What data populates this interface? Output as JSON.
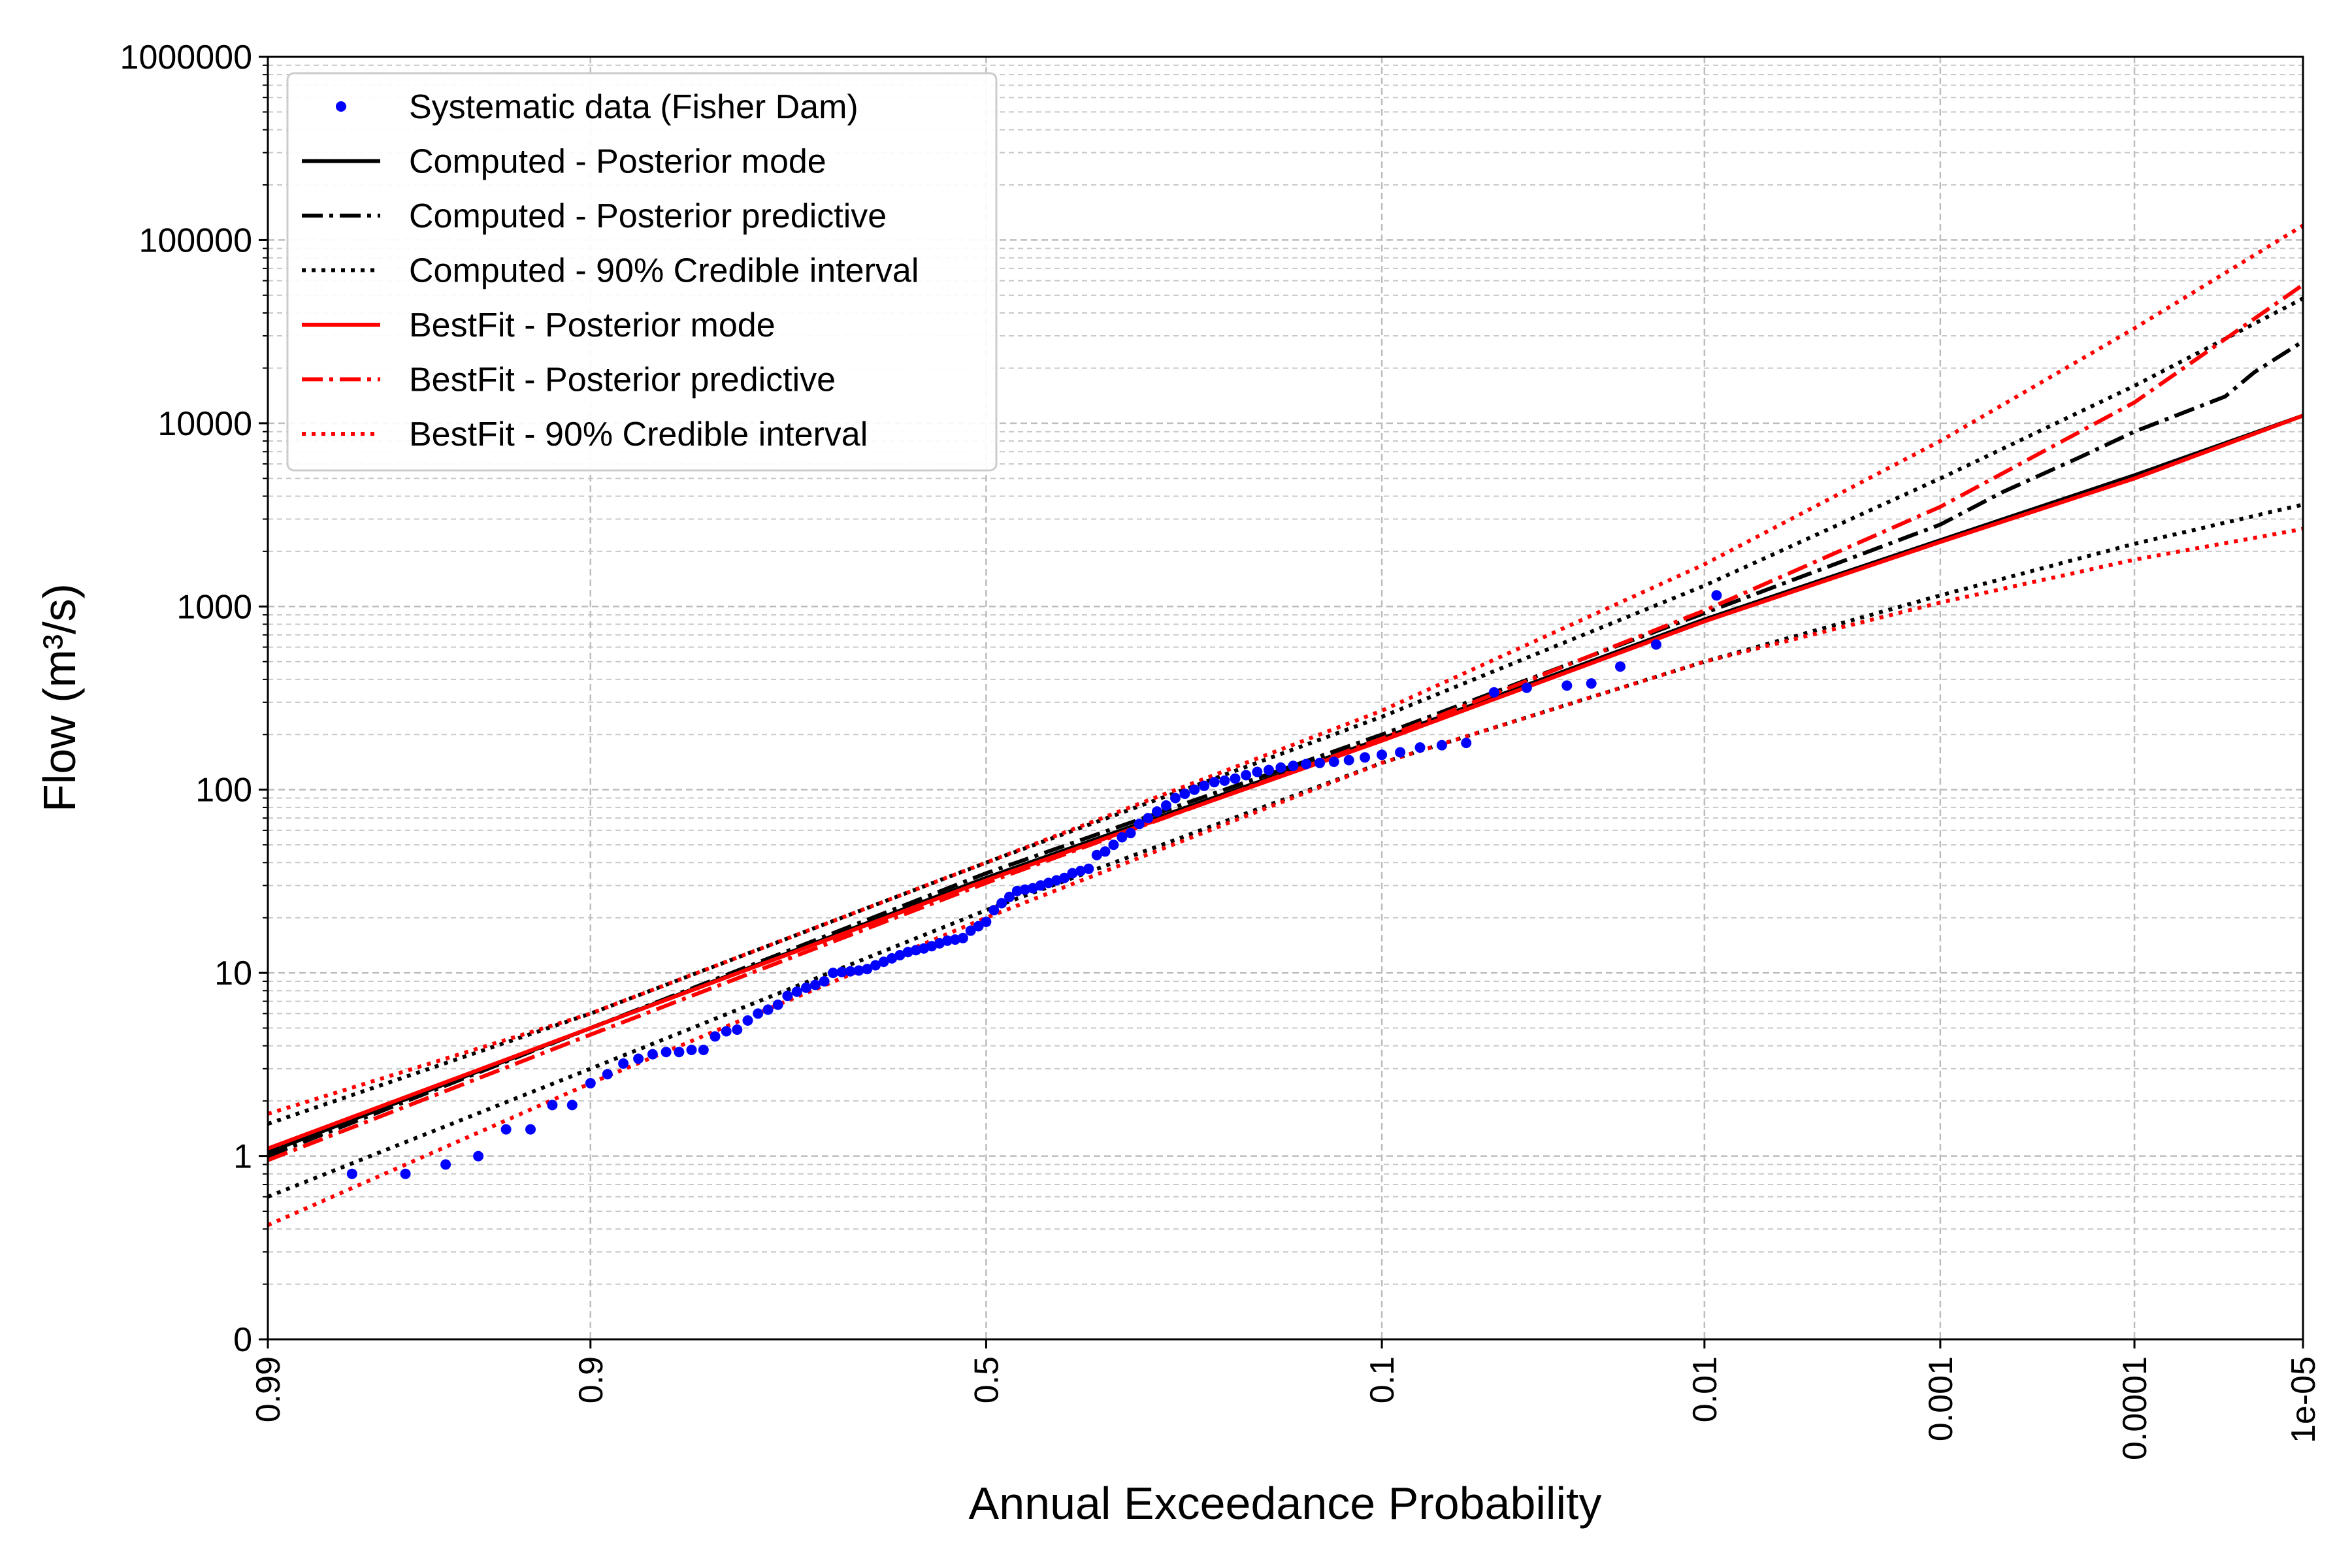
{
  "chart_data": {
    "type": "line",
    "title": "",
    "xlabel": "Annual Exceedance Probability",
    "ylabel": "Flow (m³/s)",
    "x_scale": "normal-probability",
    "y_scale": "log",
    "xlim": [
      0.99,
      1e-05
    ],
    "ylim": [
      0.1,
      1000000
    ],
    "grid": "on",
    "legend_position": "top-left",
    "x_ticks": [
      {
        "value": 0.99,
        "label": "0.99"
      },
      {
        "value": 0.9,
        "label": "0.9"
      },
      {
        "value": 0.5,
        "label": "0.5"
      },
      {
        "value": 0.1,
        "label": "0.1"
      },
      {
        "value": 0.01,
        "label": "0.01"
      },
      {
        "value": 0.001,
        "label": "0.001"
      },
      {
        "value": 0.0001,
        "label": "0.0001"
      },
      {
        "value": 1e-05,
        "label": "1e-05"
      }
    ],
    "y_ticks": [
      {
        "value": 0.1,
        "label": "0"
      },
      {
        "value": 1,
        "label": "1"
      },
      {
        "value": 10,
        "label": "10"
      },
      {
        "value": 100,
        "label": "100"
      },
      {
        "value": 1000,
        "label": "1000"
      },
      {
        "value": 10000,
        "label": "10000"
      },
      {
        "value": 100000,
        "label": "100000"
      },
      {
        "value": 1000000,
        "label": "1000000"
      }
    ],
    "series": [
      {
        "name": "Systematic data (Fisher Dam)",
        "kind": "scatter",
        "color": "#0000ff",
        "points": [
          [
            0.98,
            0.8
          ],
          [
            0.97,
            0.8
          ],
          [
            0.96,
            0.9
          ],
          [
            0.95,
            1.0
          ],
          [
            0.94,
            1.4
          ],
          [
            0.93,
            1.4
          ],
          [
            0.92,
            1.9
          ],
          [
            0.91,
            1.9
          ],
          [
            0.9,
            2.5
          ],
          [
            0.89,
            2.8
          ],
          [
            0.88,
            3.2
          ],
          [
            0.87,
            3.4
          ],
          [
            0.86,
            3.6
          ],
          [
            0.85,
            3.7
          ],
          [
            0.84,
            3.7
          ],
          [
            0.83,
            3.8
          ],
          [
            0.82,
            3.8
          ],
          [
            0.81,
            4.5
          ],
          [
            0.8,
            4.8
          ],
          [
            0.79,
            4.9
          ],
          [
            0.78,
            5.5
          ],
          [
            0.77,
            6.0
          ],
          [
            0.76,
            6.3
          ],
          [
            0.75,
            6.7
          ],
          [
            0.74,
            7.5
          ],
          [
            0.73,
            7.9
          ],
          [
            0.72,
            8.3
          ],
          [
            0.71,
            8.6
          ],
          [
            0.7,
            9.0
          ],
          [
            0.69,
            10.0
          ],
          [
            0.68,
            10.1
          ],
          [
            0.67,
            10.2
          ],
          [
            0.66,
            10.3
          ],
          [
            0.65,
            10.5
          ],
          [
            0.64,
            11.0
          ],
          [
            0.63,
            11.5
          ],
          [
            0.62,
            12.0
          ],
          [
            0.61,
            12.5
          ],
          [
            0.6,
            13.0
          ],
          [
            0.59,
            13.3
          ],
          [
            0.58,
            13.6
          ],
          [
            0.57,
            14.0
          ],
          [
            0.56,
            14.5
          ],
          [
            0.55,
            15.0
          ],
          [
            0.54,
            15.2
          ],
          [
            0.53,
            15.5
          ],
          [
            0.52,
            17.0
          ],
          [
            0.51,
            18.0
          ],
          [
            0.5,
            19.0
          ],
          [
            0.49,
            22.0
          ],
          [
            0.48,
            24.0
          ],
          [
            0.47,
            26.0
          ],
          [
            0.46,
            28.0
          ],
          [
            0.45,
            28.5
          ],
          [
            0.44,
            29.0
          ],
          [
            0.43,
            30.0
          ],
          [
            0.42,
            31.0
          ],
          [
            0.41,
            32.0
          ],
          [
            0.4,
            33.0
          ],
          [
            0.39,
            35.0
          ],
          [
            0.38,
            36.0
          ],
          [
            0.37,
            37.0
          ],
          [
            0.36,
            44.0
          ],
          [
            0.35,
            46.0
          ],
          [
            0.34,
            50.0
          ],
          [
            0.33,
            55.0
          ],
          [
            0.32,
            58.0
          ],
          [
            0.31,
            65.0
          ],
          [
            0.3,
            70.0
          ],
          [
            0.29,
            76.0
          ],
          [
            0.28,
            82.0
          ],
          [
            0.27,
            90.0
          ],
          [
            0.26,
            95.0
          ],
          [
            0.25,
            100.0
          ],
          [
            0.24,
            105.0
          ],
          [
            0.23,
            110.0
          ],
          [
            0.22,
            112.0
          ],
          [
            0.21,
            115.0
          ],
          [
            0.2,
            120.0
          ],
          [
            0.19,
            125.0
          ],
          [
            0.18,
            128.0
          ],
          [
            0.17,
            132.0
          ],
          [
            0.16,
            135.0
          ],
          [
            0.15,
            138.0
          ],
          [
            0.14,
            140.0
          ],
          [
            0.13,
            142.0
          ],
          [
            0.12,
            145.0
          ],
          [
            0.11,
            150.0
          ],
          [
            0.1,
            155.0
          ],
          [
            0.09,
            160.0
          ],
          [
            0.08,
            170.0
          ],
          [
            0.07,
            175.0
          ],
          [
            0.06,
            180.0
          ],
          [
            0.05,
            340.0
          ],
          [
            0.04,
            360.0
          ],
          [
            0.03,
            370.0
          ],
          [
            0.025,
            380.0
          ],
          [
            0.02,
            470.0
          ],
          [
            0.015,
            620.0
          ],
          [
            0.009,
            1150.0
          ]
        ]
      },
      {
        "name": "Computed - Posterior mode",
        "kind": "line",
        "color": "#000000",
        "dash": "solid",
        "points": [
          [
            0.99,
            1.05
          ],
          [
            0.9,
            5.0
          ],
          [
            0.5,
            33.0
          ],
          [
            0.1,
            190.0
          ],
          [
            0.01,
            850.0
          ],
          [
            0.001,
            2300.0
          ],
          [
            0.0001,
            5200.0
          ],
          [
            1e-05,
            11000.0
          ]
        ]
      },
      {
        "name": "Computed - Posterior predictive",
        "kind": "line",
        "color": "#000000",
        "dash": "dashdot",
        "points": [
          [
            0.99,
            1.0
          ],
          [
            0.9,
            5.0
          ],
          [
            0.5,
            35.0
          ],
          [
            0.1,
            200.0
          ],
          [
            0.01,
            920.0
          ],
          [
            0.001,
            2800.0
          ],
          [
            0.0005,
            4200.0
          ],
          [
            0.0002,
            6500.0
          ],
          [
            0.0001,
            9000.0
          ],
          [
            3e-05,
            14000.0
          ],
          [
            2e-05,
            19000.0
          ],
          [
            1e-05,
            28000.0
          ]
        ]
      },
      {
        "name": "Computed - 90% Credible interval",
        "kind": "line",
        "color": "#000000",
        "dash": "dotted",
        "points": [
          [
            0.99,
            1.5
          ],
          [
            0.9,
            6.0
          ],
          [
            0.5,
            40.0
          ],
          [
            0.1,
            250.0
          ],
          [
            0.01,
            1300.0
          ],
          [
            0.001,
            5000.0
          ],
          [
            0.0001,
            16000.0
          ],
          [
            1e-05,
            48000.0
          ]
        ]
      },
      {
        "name": "",
        "kind": "line",
        "color": "#000000",
        "dash": "dotted",
        "points": [
          [
            0.99,
            0.6
          ],
          [
            0.9,
            3.0
          ],
          [
            0.5,
            22.0
          ],
          [
            0.1,
            140.0
          ],
          [
            0.01,
            500.0
          ],
          [
            0.001,
            1150.0
          ],
          [
            0.0001,
            2200.0
          ],
          [
            1e-05,
            3600.0
          ]
        ]
      },
      {
        "name": "BestFit - Posterior mode",
        "kind": "line",
        "color": "#ff0000",
        "dash": "solid",
        "points": [
          [
            0.99,
            1.1
          ],
          [
            0.9,
            5.0
          ],
          [
            0.5,
            32.0
          ],
          [
            0.1,
            185.0
          ],
          [
            0.01,
            830.0
          ],
          [
            0.001,
            2250.0
          ],
          [
            0.0001,
            5000.0
          ],
          [
            1e-05,
            11000.0
          ]
        ]
      },
      {
        "name": "BestFit - Posterior predictive",
        "kind": "line",
        "color": "#ff0000",
        "dash": "dashdot",
        "points": [
          [
            0.99,
            0.95
          ],
          [
            0.9,
            4.6
          ],
          [
            0.5,
            31.0
          ],
          [
            0.1,
            190.0
          ],
          [
            0.01,
            950.0
          ],
          [
            0.001,
            3500.0
          ],
          [
            0.0001,
            13000.0
          ],
          [
            1e-05,
            57000.0
          ]
        ]
      },
      {
        "name": "BestFit - 90% Credible interval",
        "kind": "line",
        "color": "#ff0000",
        "dash": "dotted",
        "points": [
          [
            0.99,
            1.7
          ],
          [
            0.9,
            6.0
          ],
          [
            0.5,
            40.0
          ],
          [
            0.1,
            270.0
          ],
          [
            0.01,
            1700.0
          ],
          [
            0.001,
            8000.0
          ],
          [
            0.0001,
            33000.0
          ],
          [
            1e-05,
            120000.0
          ]
        ]
      },
      {
        "name": "",
        "kind": "line",
        "color": "#ff0000",
        "dash": "dotted",
        "points": [
          [
            0.99,
            0.42
          ],
          [
            0.9,
            2.5
          ],
          [
            0.5,
            20.0
          ],
          [
            0.1,
            140.0
          ],
          [
            0.01,
            500.0
          ],
          [
            0.001,
            1050.0
          ],
          [
            0.0001,
            1800.0
          ],
          [
            1e-05,
            2650.0
          ]
        ]
      }
    ]
  }
}
